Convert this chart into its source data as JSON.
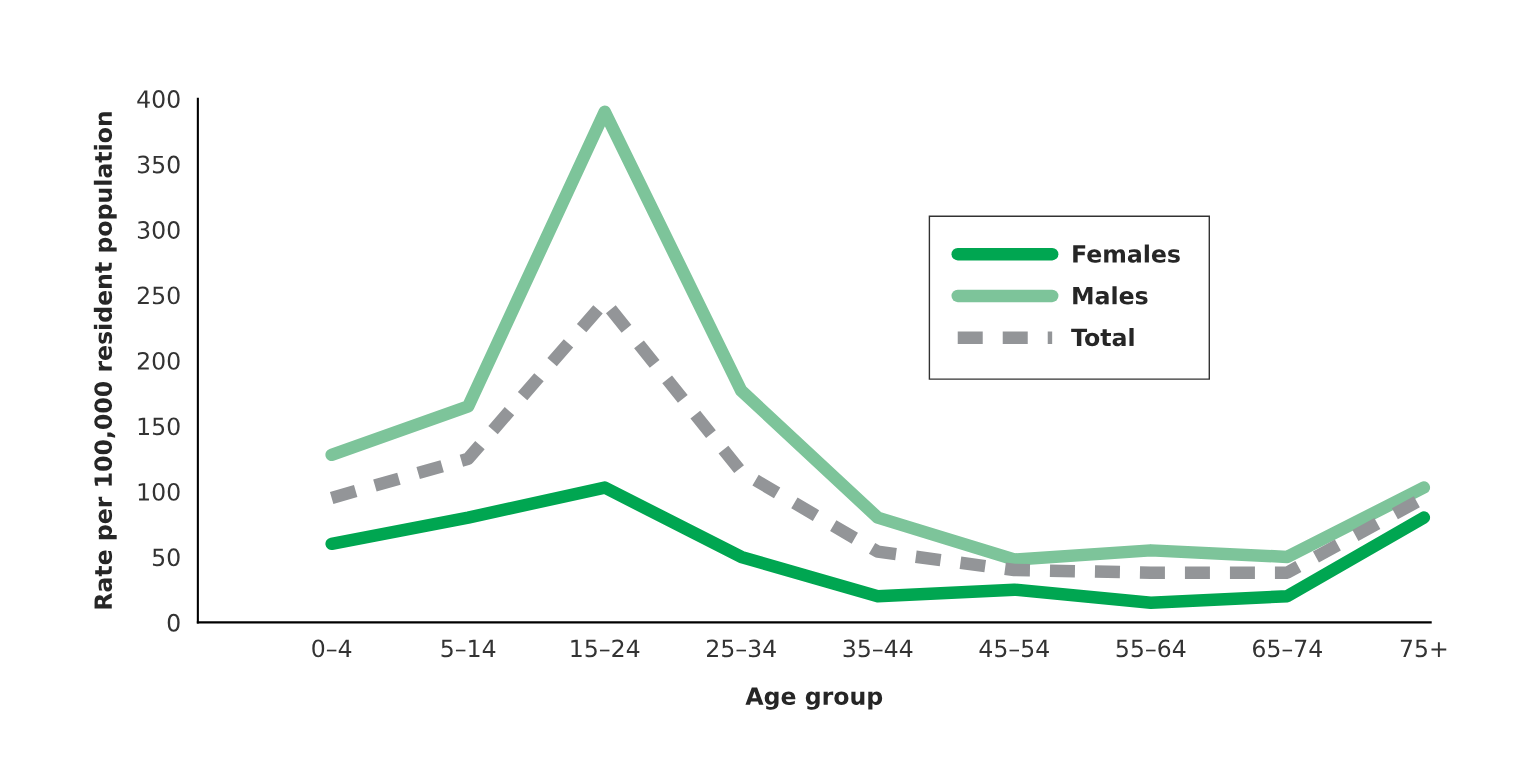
{
  "chart_data": {
    "type": "line",
    "xlabel": "Age group",
    "ylabel": "Rate per 100,000 resident population",
    "categories": [
      "0–4",
      "5–14",
      "15–24",
      "25–34",
      "35–44",
      "45–54",
      "55–64",
      "65–74",
      "75+"
    ],
    "series": [
      {
        "name": "Females",
        "color": "#00a651",
        "line_style": "solid",
        "values": [
          60,
          80,
          103,
          50,
          20,
          25,
          15,
          20,
          80
        ]
      },
      {
        "name": "Males",
        "color": "#7dc49a",
        "line_style": "solid",
        "values": [
          128,
          165,
          390,
          177,
          80,
          48,
          55,
          50,
          103
        ]
      },
      {
        "name": "Total",
        "color": "#939598",
        "line_style": "dashed",
        "values": [
          95,
          125,
          245,
          115,
          54,
          40,
          38,
          38,
          95
        ]
      }
    ],
    "ylim": [
      0,
      400
    ],
    "yticks": [
      0,
      50,
      100,
      150,
      200,
      250,
      300,
      350,
      400
    ],
    "grid": false,
    "legend": "right"
  }
}
